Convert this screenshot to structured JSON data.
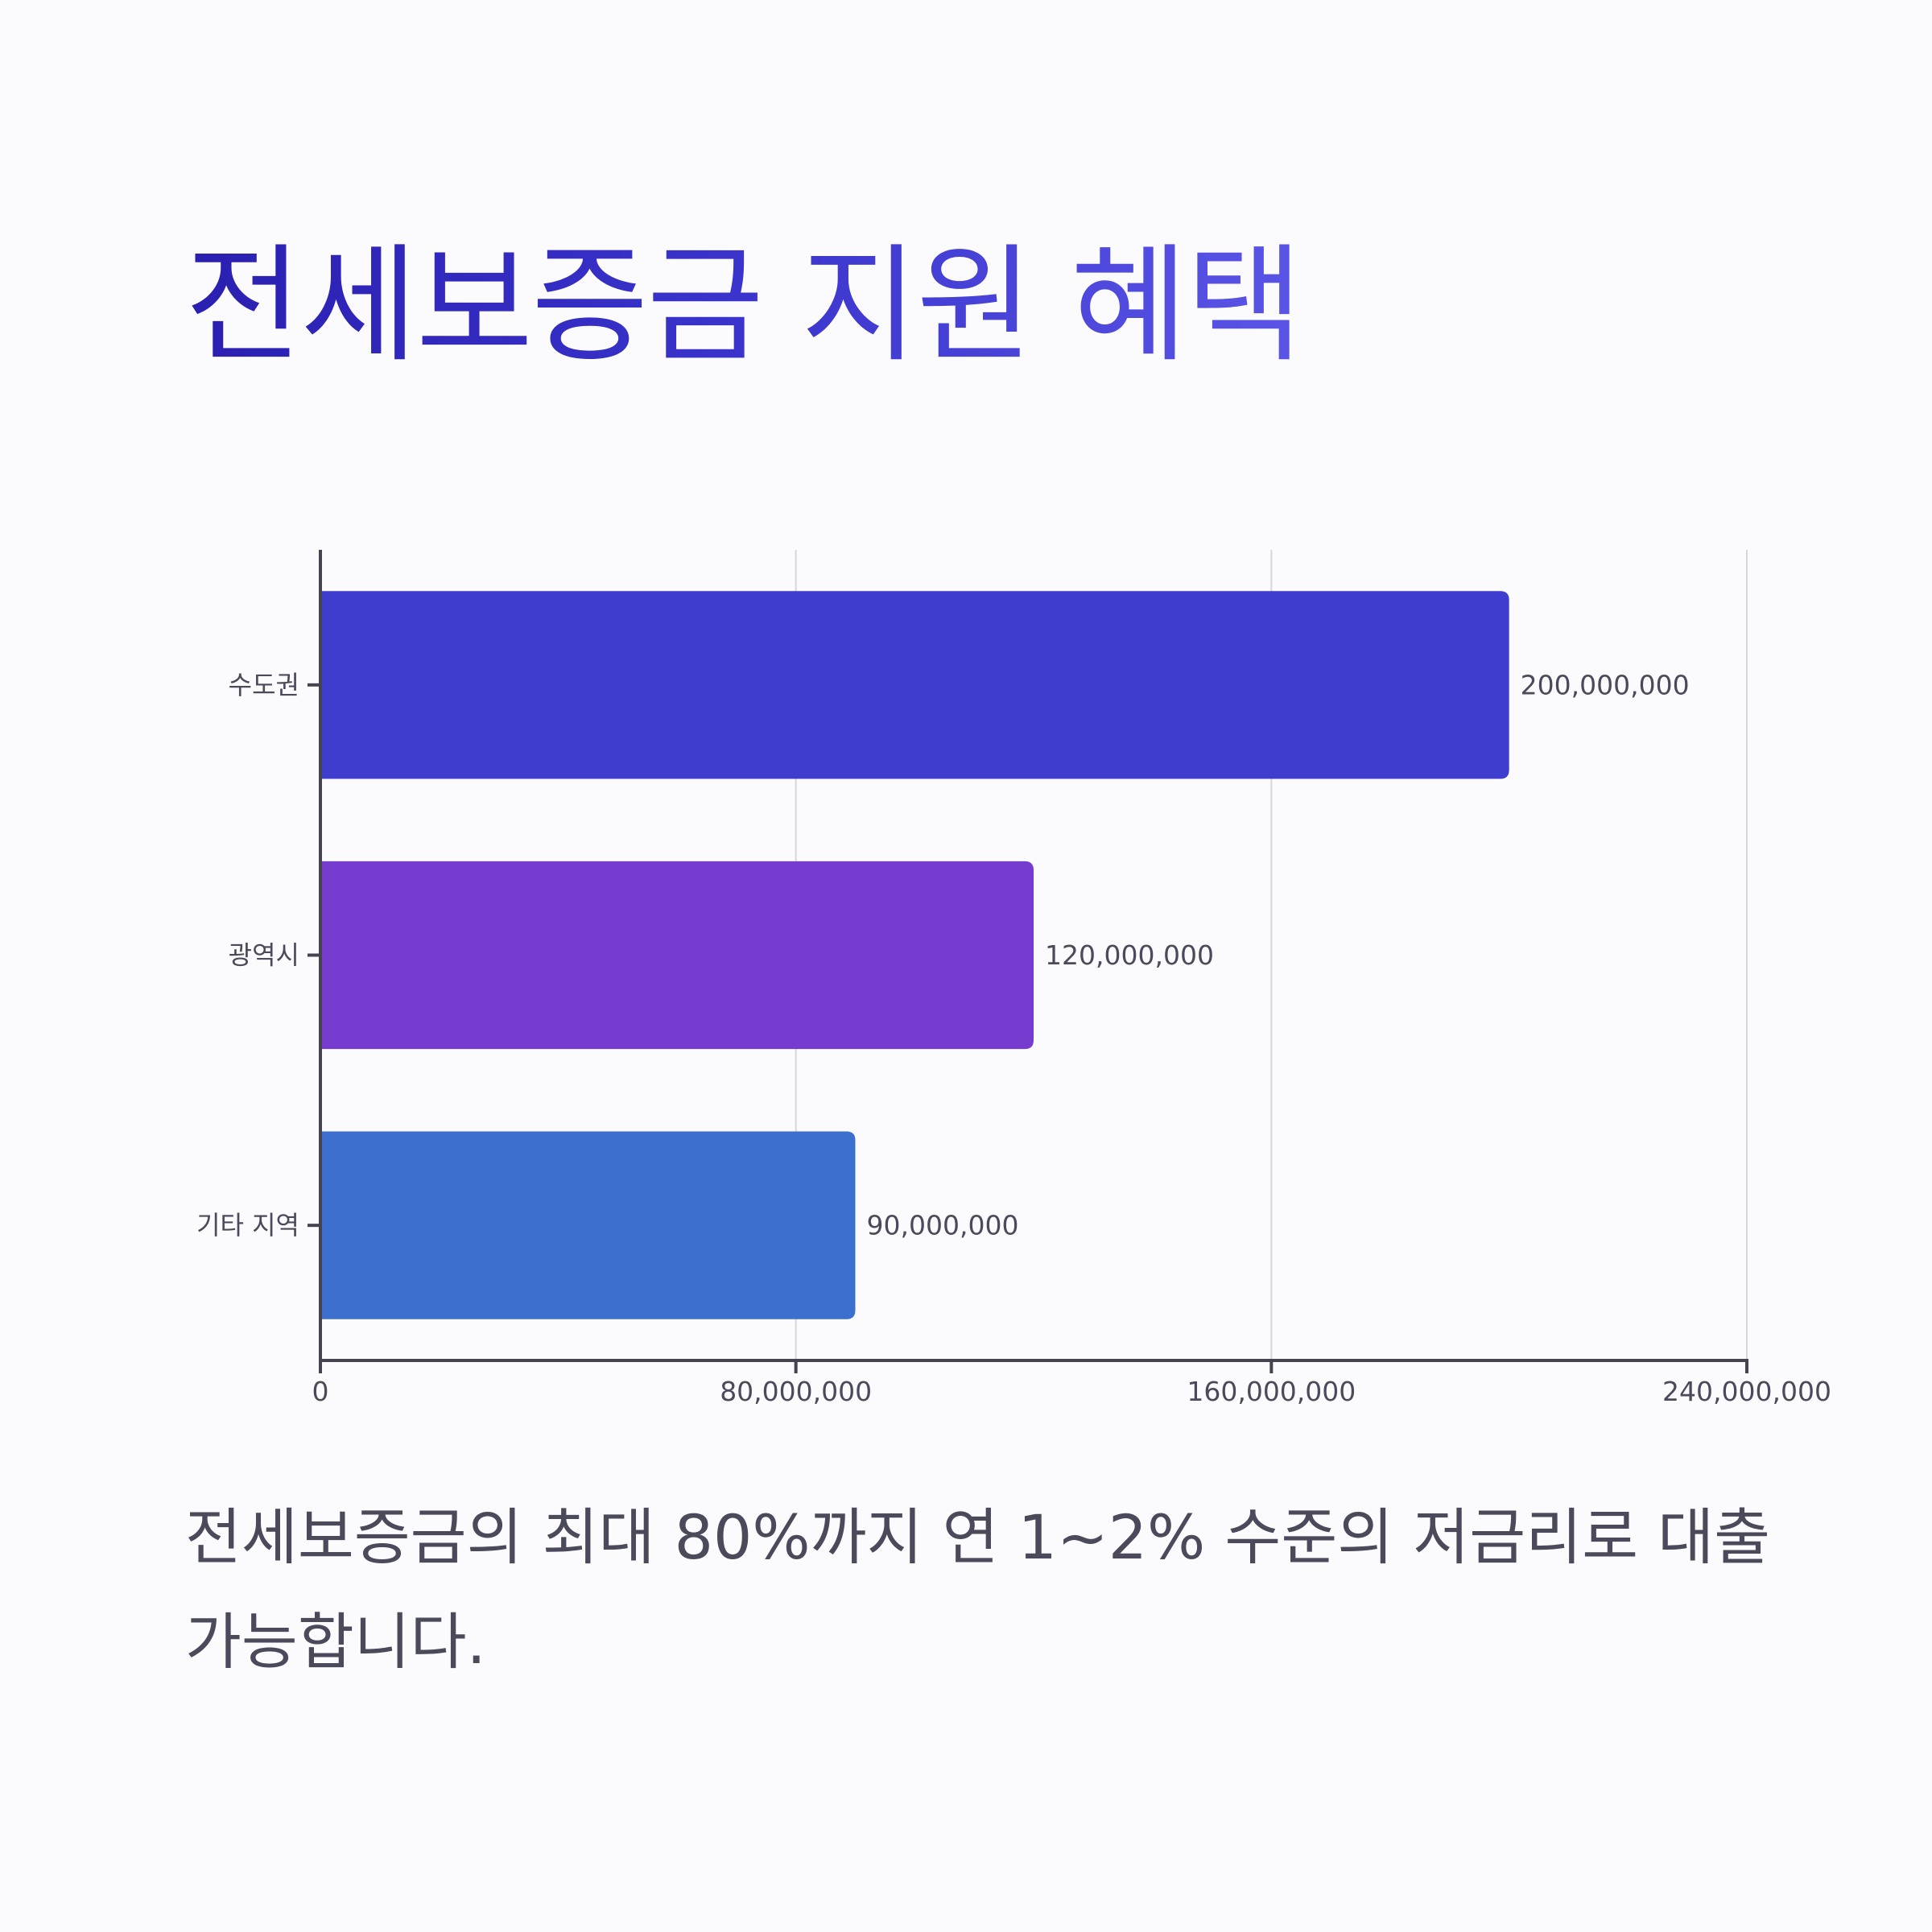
{
  "title": "전세보증금 지원 혜택",
  "caption": "전세보증금의 최대 80%까지 연 1~2% 수준의 저금리로 대출 가능합니다.",
  "chart_data": {
    "type": "bar",
    "orientation": "horizontal",
    "title": "",
    "xlabel": "",
    "ylabel": "",
    "categories": [
      "수도권",
      "광역시",
      "기타 지역"
    ],
    "values": [
      200000000,
      120000000,
      90000000
    ],
    "value_labels": [
      "200,000,000",
      "120,000,000",
      "90,000,000"
    ],
    "colors": [
      "#3f3dce",
      "#763ccf",
      "#3d6fce"
    ],
    "xlim": [
      0,
      240000000
    ],
    "xticks": [
      0,
      80000000,
      160000000,
      240000000
    ],
    "xtick_labels": [
      "0",
      "80,000,000",
      "160,000,000",
      "240,000,000"
    ],
    "grid": "vertical"
  }
}
